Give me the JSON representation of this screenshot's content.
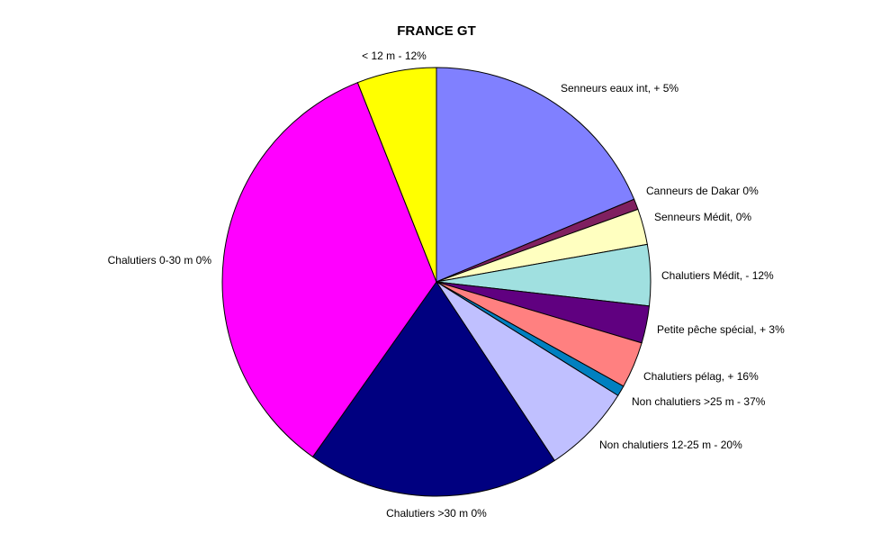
{
  "chart_data": {
    "type": "pie",
    "title": "FRANCE  GT",
    "start_angle_deg": 0,
    "direction": "clockwise",
    "legend": "none",
    "slices": [
      {
        "label": "Senneurs eaux int, + 5%",
        "value": 18.7,
        "color": "#8080FF"
      },
      {
        "label": "Canneurs de Dakar 0%",
        "value": 0.8,
        "color": "#802060"
      },
      {
        "label": "Senneurs Médit, 0%",
        "value": 2.7,
        "color": "#FFFFC0"
      },
      {
        "label": "Chalutiers Médit, - 12%",
        "value": 4.6,
        "color": "#A0E0E0"
      },
      {
        "label": "Petite pêche spécial, + 3%",
        "value": 2.8,
        "color": "#600080"
      },
      {
        "label": "Chalutiers pélag, + 16%",
        "value": 3.5,
        "color": "#FF8080"
      },
      {
        "label": "Non chalutiers >25 m - 37%",
        "value": 0.8,
        "color": "#0080C0"
      },
      {
        "label": "Non chalutiers 12-25 m - 20%",
        "value": 6.8,
        "color": "#C0C0FF"
      },
      {
        "label": "Chalutiers >30 m 0%",
        "value": 19.1,
        "color": "#000080"
      },
      {
        "label": "Chalutiers 0-30 m 0%",
        "value": 34.2,
        "color": "#FF00FF"
      },
      {
        "label": "< 12 m - 12%",
        "value": 6.0,
        "color": "#FFFF00"
      }
    ]
  }
}
